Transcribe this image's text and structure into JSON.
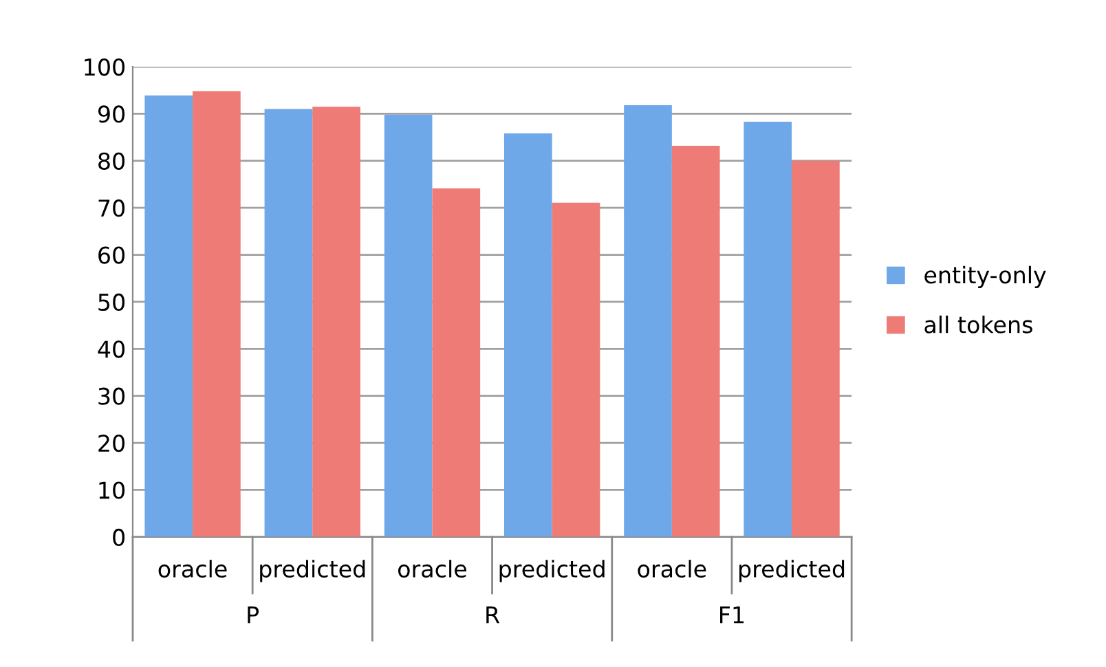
{
  "chart_data": {
    "type": "bar",
    "categories": [
      "oracle",
      "predicted",
      "oracle",
      "predicted",
      "oracle",
      "predicted"
    ],
    "series": [
      {
        "name": "entity-only",
        "color": "#6fa8e8",
        "values": [
          93.9,
          91.0,
          89.8,
          85.8,
          91.8,
          88.3
        ]
      },
      {
        "name": "all tokens",
        "color": "#ee7b76",
        "values": [
          94.8,
          91.5,
          74.1,
          71.1,
          83.2,
          80.0
        ]
      }
    ],
    "annotations": [
      "P",
      "R",
      "F1"
    ],
    "ylim": [
      0,
      100
    ],
    "yticks": [
      0,
      10,
      20,
      30,
      40,
      50,
      60,
      70,
      80,
      90,
      100
    ],
    "grid": "y",
    "legend": "right"
  }
}
